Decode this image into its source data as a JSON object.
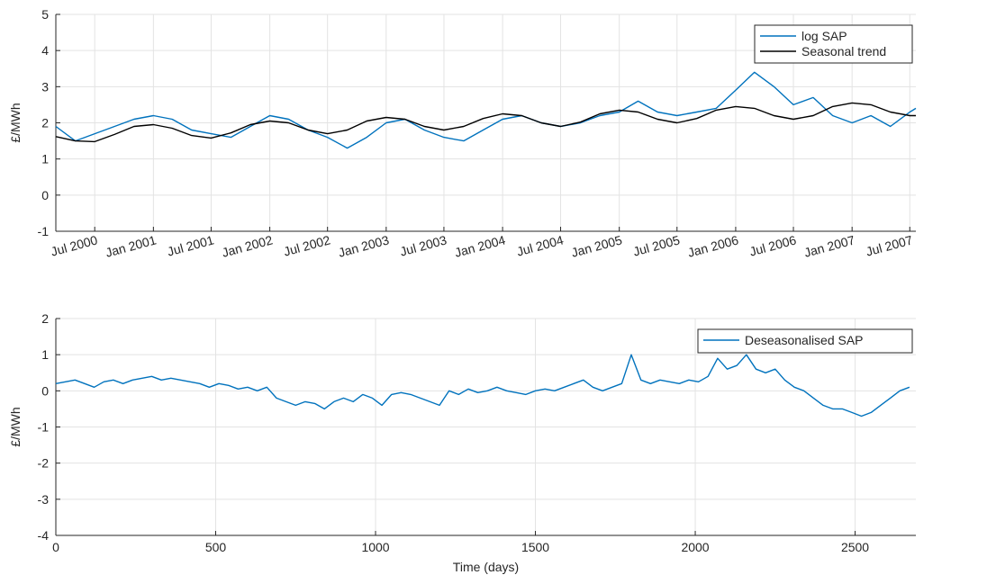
{
  "colors": {
    "series": "#0072BD",
    "trend": "#000000",
    "grid": "#e3e3e3",
    "axis": "#262626"
  },
  "chart_data": [
    {
      "type": "line",
      "xlabel": "",
      "ylabel": "£/MWh",
      "ylim": [
        -1,
        5
      ],
      "yticks": [
        -1,
        0,
        1,
        2,
        3,
        4,
        5
      ],
      "xlim": [
        "2000-03-01",
        "2007-07-20"
      ],
      "xticks": [
        "2000-07-01",
        "2001-01-01",
        "2001-07-01",
        "2002-01-01",
        "2002-07-01",
        "2003-01-01",
        "2003-07-01",
        "2004-01-01",
        "2004-07-01",
        "2005-01-01",
        "2005-07-01",
        "2006-01-01",
        "2006-07-01",
        "2007-01-01",
        "2007-07-01"
      ],
      "xticklabels": [
        "Jul 2000",
        "Jan 2001",
        "Jul 2001",
        "Jan 2002",
        "Jul 2002",
        "Jan 2003",
        "Jul 2003",
        "Jan 2004",
        "Jul 2004",
        "Jan 2005",
        "Jul 2005",
        "Jan 2006",
        "Jul 2006",
        "Jan 2007",
        "Jul 2007"
      ],
      "grid": true,
      "legend_position": "top-right",
      "series": [
        {
          "name": "log SAP",
          "color": "#0072BD",
          "x": [
            "2000-03-01",
            "2000-05-01",
            "2000-07-01",
            "2000-09-01",
            "2000-11-01",
            "2001-01-01",
            "2001-03-01",
            "2001-05-01",
            "2001-07-01",
            "2001-09-01",
            "2001-11-01",
            "2002-01-01",
            "2002-03-01",
            "2002-05-01",
            "2002-07-01",
            "2002-09-01",
            "2002-11-01",
            "2003-01-01",
            "2003-03-01",
            "2003-05-01",
            "2003-07-01",
            "2003-09-01",
            "2003-11-01",
            "2004-01-01",
            "2004-03-01",
            "2004-05-01",
            "2004-07-01",
            "2004-09-01",
            "2004-11-01",
            "2005-01-01",
            "2005-03-01",
            "2005-05-01",
            "2005-07-01",
            "2005-09-01",
            "2005-11-01",
            "2006-01-01",
            "2006-03-01",
            "2006-05-01",
            "2006-07-01",
            "2006-09-01",
            "2006-11-01",
            "2007-01-01",
            "2007-03-01",
            "2007-05-01",
            "2007-07-01",
            "2007-07-20"
          ],
          "y": [
            1.9,
            1.5,
            1.7,
            1.9,
            2.1,
            2.2,
            2.1,
            1.8,
            1.7,
            1.6,
            1.9,
            2.2,
            2.1,
            1.8,
            1.6,
            1.3,
            1.6,
            2.0,
            2.1,
            1.8,
            1.6,
            1.5,
            1.8,
            2.1,
            2.2,
            2.0,
            1.9,
            2.0,
            2.2,
            2.3,
            2.6,
            2.3,
            2.2,
            2.3,
            2.4,
            2.9,
            3.4,
            3.0,
            2.5,
            2.7,
            2.2,
            2.0,
            2.2,
            1.9,
            2.3,
            2.4
          ]
        },
        {
          "name": "Seasonal trend",
          "color": "#000000",
          "x": [
            "2000-03-01",
            "2000-05-01",
            "2000-07-01",
            "2000-09-01",
            "2000-11-01",
            "2001-01-01",
            "2001-03-01",
            "2001-05-01",
            "2001-07-01",
            "2001-09-01",
            "2001-11-01",
            "2002-01-01",
            "2002-03-01",
            "2002-05-01",
            "2002-07-01",
            "2002-09-01",
            "2002-11-01",
            "2003-01-01",
            "2003-03-01",
            "2003-05-01",
            "2003-07-01",
            "2003-09-01",
            "2003-11-01",
            "2004-01-01",
            "2004-03-01",
            "2004-05-01",
            "2004-07-01",
            "2004-09-01",
            "2004-11-01",
            "2005-01-01",
            "2005-03-01",
            "2005-05-01",
            "2005-07-01",
            "2005-09-01",
            "2005-11-01",
            "2006-01-01",
            "2006-03-01",
            "2006-05-01",
            "2006-07-01",
            "2006-09-01",
            "2006-11-01",
            "2007-01-01",
            "2007-03-01",
            "2007-05-01",
            "2007-07-01",
            "2007-07-20"
          ],
          "y": [
            1.62,
            1.5,
            1.48,
            1.68,
            1.9,
            1.95,
            1.85,
            1.65,
            1.58,
            1.72,
            1.95,
            2.05,
            2.0,
            1.8,
            1.7,
            1.8,
            2.05,
            2.15,
            2.1,
            1.9,
            1.8,
            1.9,
            2.12,
            2.25,
            2.2,
            2.0,
            1.9,
            2.02,
            2.25,
            2.35,
            2.3,
            2.1,
            2.0,
            2.12,
            2.35,
            2.45,
            2.4,
            2.2,
            2.1,
            2.2,
            2.45,
            2.55,
            2.5,
            2.3,
            2.2,
            2.2
          ]
        }
      ]
    },
    {
      "type": "line",
      "xlabel": "Time (days)",
      "ylabel": "£/MWh",
      "xlim": [
        0,
        2690
      ],
      "ylim": [
        -4,
        2
      ],
      "xticks": [
        0,
        500,
        1000,
        1500,
        2000,
        2500
      ],
      "yticks": [
        -4,
        -3,
        -2,
        -1,
        0,
        1,
        2
      ],
      "grid": true,
      "legend_position": "top-right",
      "series": [
        {
          "name": "Deseasonalised SAP",
          "color": "#0072BD",
          "x": [
            0,
            30,
            60,
            90,
            120,
            150,
            180,
            210,
            240,
            270,
            300,
            330,
            360,
            390,
            420,
            450,
            480,
            510,
            540,
            570,
            600,
            630,
            660,
            690,
            720,
            750,
            780,
            810,
            840,
            870,
            900,
            930,
            960,
            990,
            1020,
            1050,
            1080,
            1110,
            1140,
            1170,
            1200,
            1230,
            1260,
            1290,
            1320,
            1350,
            1380,
            1410,
            1440,
            1470,
            1500,
            1530,
            1560,
            1590,
            1620,
            1650,
            1680,
            1710,
            1740,
            1770,
            1800,
            1830,
            1860,
            1890,
            1920,
            1950,
            1980,
            2010,
            2040,
            2070,
            2100,
            2130,
            2160,
            2190,
            2220,
            2250,
            2280,
            2310,
            2340,
            2370,
            2400,
            2430,
            2460,
            2490,
            2520,
            2550,
            2580,
            2610,
            2640,
            2670
          ],
          "y": [
            0.2,
            0.25,
            0.3,
            0.2,
            0.1,
            0.25,
            0.3,
            0.2,
            0.3,
            0.35,
            0.4,
            0.3,
            0.35,
            0.3,
            0.25,
            0.2,
            0.1,
            0.2,
            0.15,
            0.05,
            0.1,
            0.0,
            0.1,
            -0.2,
            -0.3,
            -0.4,
            -0.3,
            -0.35,
            -0.5,
            -0.3,
            -0.2,
            -0.3,
            -0.1,
            -0.2,
            -0.4,
            -0.1,
            -0.05,
            -0.1,
            -0.2,
            -0.3,
            -0.4,
            0.0,
            -0.1,
            0.05,
            -0.05,
            0.0,
            0.1,
            0.0,
            -0.05,
            -0.1,
            0.0,
            0.05,
            0.0,
            0.1,
            0.2,
            0.3,
            0.1,
            0.0,
            0.1,
            0.2,
            1.0,
            0.3,
            0.2,
            0.3,
            0.25,
            0.2,
            0.3,
            0.25,
            0.4,
            0.9,
            0.6,
            0.7,
            1.0,
            0.6,
            0.5,
            0.6,
            0.3,
            0.1,
            0.0,
            -0.2,
            -0.4,
            -0.5,
            -0.5,
            -0.6,
            -0.7,
            -0.6,
            -0.4,
            -0.2,
            0.0,
            0.1
          ]
        }
      ]
    }
  ]
}
